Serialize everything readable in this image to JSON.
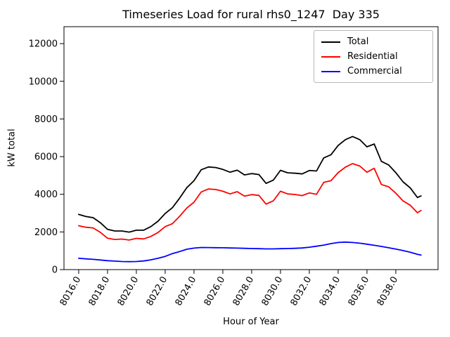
{
  "chart_data": {
    "type": "line",
    "title": "Timeseries Load for rural rhs0_1247  Day 335",
    "xlabel": "Hour of Year",
    "ylabel": "kW total",
    "xlim": [
      8014.98,
      8040.93
    ],
    "ylim": [
      0,
      12900
    ],
    "grid": false,
    "legend_position": "upper right",
    "xticks": {
      "values": [
        8016,
        8018,
        8020,
        8022,
        8024,
        8026,
        8028,
        8030,
        8032,
        8034,
        8036,
        8038
      ],
      "labels": [
        "8016.0",
        "8018.0",
        "8020.0",
        "8022.0",
        "8024.0",
        "8026.0",
        "8028.0",
        "8030.0",
        "8032.0",
        "8034.0",
        "8036.0",
        "8038.0"
      ]
    },
    "yticks": {
      "values": [
        0,
        2000,
        4000,
        6000,
        8000,
        10000,
        12000
      ],
      "labels": [
        "0",
        "2000",
        "4000",
        "6000",
        "8000",
        "10000",
        "12000"
      ]
    },
    "x": [
      8016.0,
      8016.5,
      8017.0,
      8017.5,
      8018.0,
      8018.5,
      8019.0,
      8019.5,
      8020.0,
      8020.5,
      8021.0,
      8021.5,
      8022.0,
      8022.5,
      8023.0,
      8023.5,
      8024.0,
      8024.5,
      8025.0,
      8025.5,
      8026.0,
      8026.5,
      8027.0,
      8027.5,
      8028.0,
      8028.5,
      8029.0,
      8029.5,
      8030.0,
      8030.5,
      8031.0,
      8031.5,
      8032.0,
      8032.5,
      8033.0,
      8033.5,
      8034.0,
      8034.5,
      8035.0,
      8035.5,
      8036.0,
      8036.5,
      8037.0,
      8037.5,
      8038.0,
      8038.5,
      8039.0,
      8039.5,
      8039.75
    ],
    "series": [
      {
        "name": "Total",
        "color": "#000000",
        "values": [
          2930,
          2820,
          2760,
          2490,
          2140,
          2050,
          2050,
          1990,
          2090,
          2090,
          2280,
          2570,
          2980,
          3290,
          3790,
          4350,
          4720,
          5300,
          5450,
          5420,
          5320,
          5170,
          5280,
          5030,
          5100,
          5050,
          4580,
          4750,
          5270,
          5140,
          5120,
          5080,
          5260,
          5240,
          5930,
          6100,
          6590,
          6900,
          7070,
          6900,
          6520,
          6670,
          5750,
          5560,
          5150,
          4660,
          4340,
          3830,
          3910
        ]
      },
      {
        "name": "Residential",
        "color": "#ff0000",
        "values": [
          2330,
          2250,
          2215,
          1980,
          1665,
          1600,
          1620,
          1570,
          1660,
          1630,
          1760,
          1970,
          2280,
          2440,
          2830,
          3270,
          3580,
          4125,
          4280,
          4255,
          4160,
          4020,
          4140,
          3900,
          3980,
          3940,
          3480,
          3650,
          4160,
          4020,
          3990,
          3930,
          4070,
          4000,
          4630,
          4720,
          5150,
          5440,
          5630,
          5500,
          5170,
          5380,
          4520,
          4400,
          4060,
          3650,
          3420,
          3020,
          3140
        ]
      },
      {
        "name": "Commercial",
        "color": "#0000ff",
        "values": [
          600,
          570,
          545,
          510,
          475,
          450,
          430,
          420,
          430,
          460,
          520,
          600,
          700,
          850,
          960,
          1080,
          1140,
          1175,
          1170,
          1165,
          1160,
          1150,
          1140,
          1130,
          1120,
          1110,
          1100,
          1100,
          1110,
          1120,
          1130,
          1150,
          1190,
          1240,
          1300,
          1380,
          1440,
          1460,
          1440,
          1400,
          1350,
          1290,
          1230,
          1160,
          1090,
          1010,
          920,
          810,
          770
        ]
      }
    ]
  }
}
